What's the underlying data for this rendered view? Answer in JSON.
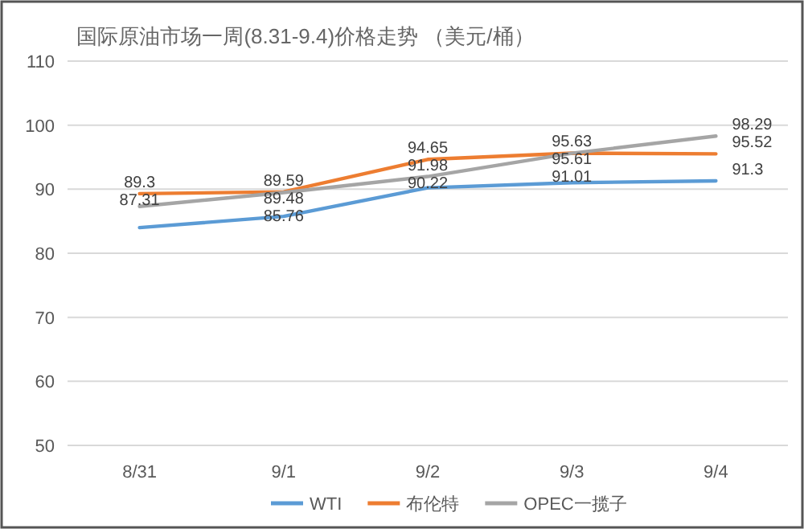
{
  "chart_data": {
    "type": "line",
    "title": "国际原油市场一周(8.31-9.4)价格走势 （美元/桶）",
    "categories": [
      "8/31",
      "9/1",
      "9/2",
      "9/3",
      "9/4"
    ],
    "series": [
      {
        "name": "WTI",
        "color": "#5b9bd5",
        "values": [
          84.0,
          85.76,
          90.22,
          91.01,
          91.3
        ],
        "value_labels": [
          null,
          "85.76",
          "90.22",
          "91.01",
          "91.3"
        ]
      },
      {
        "name": "布伦特",
        "color": "#ed7d31",
        "values": [
          89.3,
          89.59,
          94.65,
          95.63,
          95.52
        ],
        "value_labels": [
          "89.3",
          "89.59",
          "94.65",
          "95.63",
          "95.52"
        ]
      },
      {
        "name": "OPEC一揽子",
        "color": "#a5a5a5",
        "values": [
          87.31,
          89.48,
          91.98,
          95.61,
          98.29
        ],
        "value_labels": [
          "87.31",
          "89.48",
          "91.98",
          "95.61",
          "98.29"
        ]
      }
    ],
    "ylim": [
      50,
      110
    ],
    "yticks": [
      50,
      60,
      70,
      80,
      90,
      100,
      110
    ],
    "grid": "y",
    "legend": "bottom",
    "marker": "none",
    "line_style": "solid"
  }
}
